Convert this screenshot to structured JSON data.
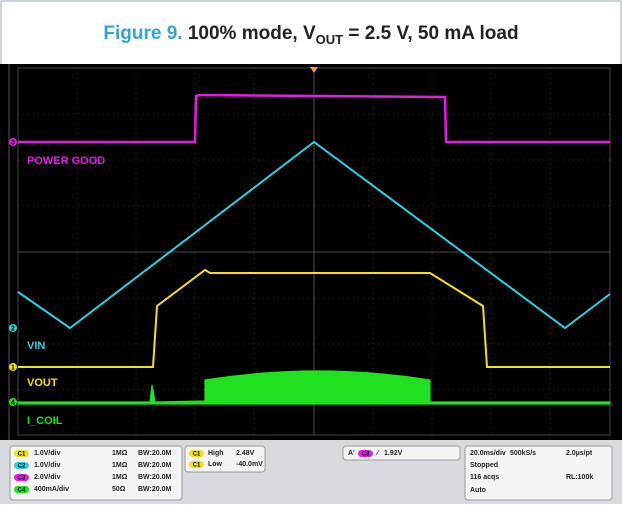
{
  "title": {
    "figure": "Figure 9.",
    "text": "100% mode, V",
    "subscript": "OUT",
    "rest": " = 2.5 V, 50 mA load"
  },
  "trace_labels": [
    "POWER GOOD",
    "VIN",
    "VOUT",
    "I_COIL"
  ],
  "channel_markers": [
    "3",
    "2",
    "1",
    "4"
  ],
  "channels": [
    {
      "badge": "C1",
      "scale": "1.0V/div",
      "coupling": "1MΩ",
      "bw": "BW:20.0M"
    },
    {
      "badge": "C2",
      "scale": "1.0V/div",
      "coupling": "1MΩ",
      "bw": "BW:20.0M"
    },
    {
      "badge": "C3",
      "scale": "2.0V/div",
      "coupling": "1MΩ",
      "bw": "BW:20.0M"
    },
    {
      "badge": "C4",
      "scale": "400mA/div",
      "coupling": "50Ω",
      "bw": "BW:20.0M"
    }
  ],
  "measurements": [
    {
      "badge": "C1",
      "name": "High",
      "value": "2.48V"
    },
    {
      "badge": "C1",
      "name": "Low",
      "value": "-40.0mV"
    }
  ],
  "trigger": {
    "mode": "A'",
    "badge": "C3",
    "slope": "∕",
    "level": "1.92V"
  },
  "timebase": {
    "scale": "20.0ms/div",
    "rate": "500kS/s",
    "resolution": "2.0µs/pt",
    "state": "Stopped",
    "acqs": "116 acqs",
    "record": "RL:100k",
    "mode": "Auto"
  }
}
